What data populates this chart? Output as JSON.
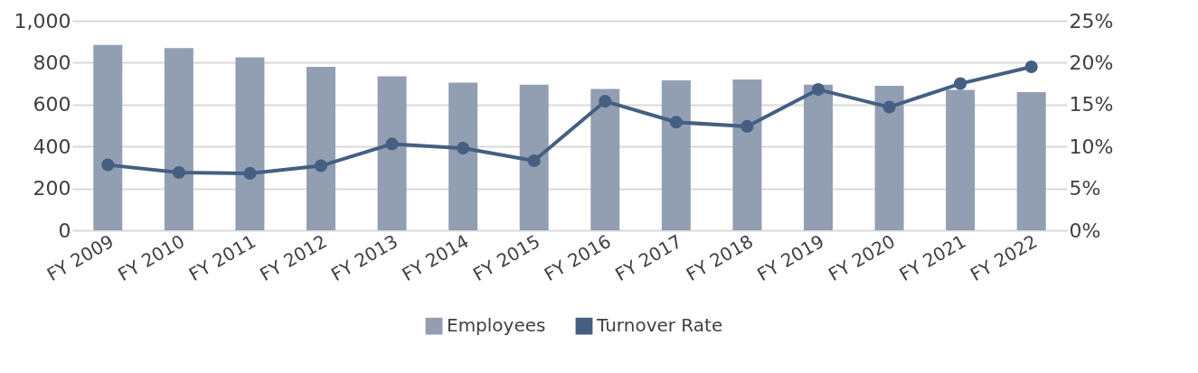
{
  "chart_data": {
    "type": "bar",
    "categories": [
      "FY 2009",
      "FY 2010",
      "FY 2011",
      "FY 2012",
      "FY 2013",
      "FY 2014",
      "FY 2015",
      "FY 2016",
      "FY 2017",
      "FY 2018",
      "FY 2019",
      "FY 2020",
      "FY 2021",
      "FY 2022"
    ],
    "series": [
      {
        "name": "Employees",
        "color": "#929fb3",
        "values": [
          885,
          870,
          825,
          780,
          735,
          705,
          695,
          675,
          715,
          720,
          695,
          690,
          670,
          660
        ]
      },
      {
        "name": "Turnover Rate",
        "type": "line",
        "axis": "y2",
        "color": "#455f82",
        "marker": "circle",
        "values": [
          7.8,
          6.9,
          6.8,
          7.7,
          10.3,
          9.8,
          8.3,
          15.4,
          12.9,
          12.4,
          16.8,
          14.7,
          17.5,
          19.5
        ]
      }
    ],
    "ylim": [
      0,
      1000
    ],
    "yticks": [
      0,
      200,
      400,
      600,
      800,
      {
        "value": 1000,
        "label": "1,000"
      }
    ],
    "y2lim": [
      0,
      25
    ],
    "y2ticks": [
      {
        "value": 0,
        "label": "0%"
      },
      {
        "value": 5,
        "label": "5%"
      },
      {
        "value": 10,
        "label": "10%"
      },
      {
        "value": 15,
        "label": "15%"
      },
      {
        "value": 20,
        "label": "20%"
      },
      {
        "value": 25,
        "label": "25%"
      }
    ],
    "grid": "y",
    "legend": "bottom"
  }
}
